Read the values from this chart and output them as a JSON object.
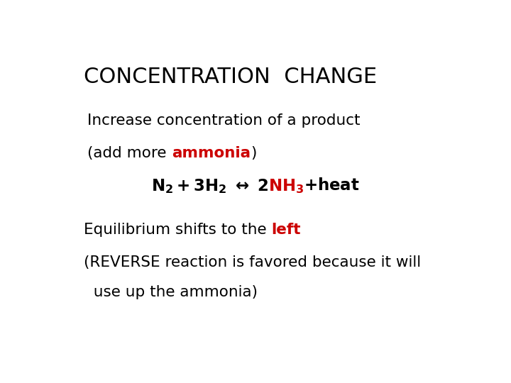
{
  "background_color": "#ffffff",
  "title": "CONCENTRATION  CHANGE",
  "title_fontsize": 22,
  "title_color": "#000000",
  "body_fontsize": 15.5,
  "body_color": "#000000",
  "red_color": "#cc0000",
  "eq_fontsize": 16.5,
  "line1": "Increase concentration of a product",
  "line2_black1": "(add more ",
  "line2_red": "ammonia",
  "line2_black2": ")",
  "bottom_line1_black1": "Equilibrium shifts to the ",
  "bottom_line1_red": "left",
  "bottom_line2": "(REVERSE reaction is favored because it will",
  "bottom_line3": "  use up the ammonia)"
}
